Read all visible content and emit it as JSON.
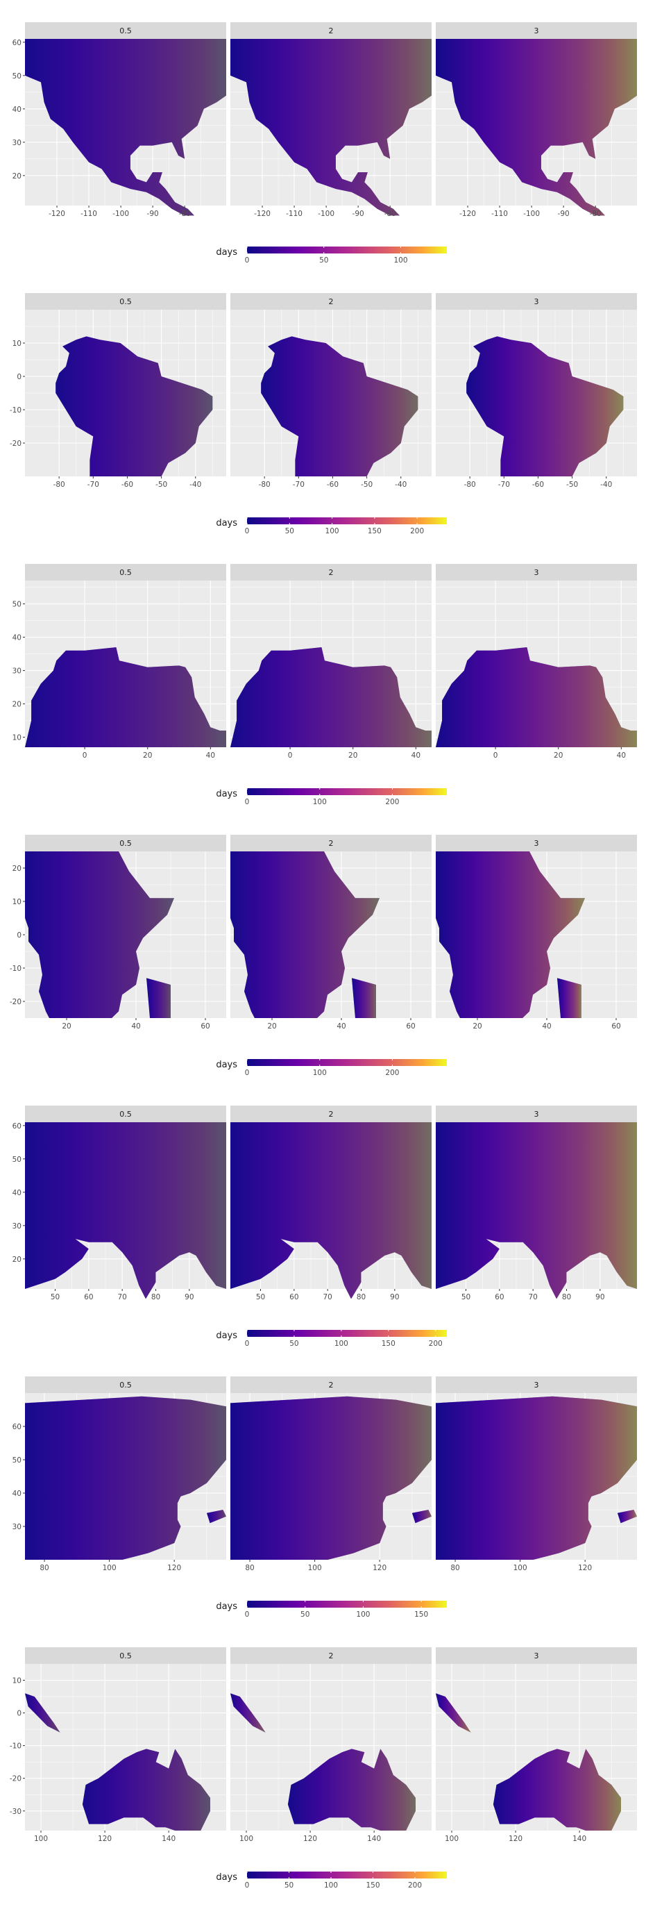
{
  "chart_data": [
    {
      "type": "heatmap",
      "facets": [
        "0.5",
        "2",
        "3"
      ],
      "x_ticks": [
        -120,
        -110,
        -100,
        -90,
        -80
      ],
      "y_ticks": [
        20,
        30,
        40,
        50,
        60
      ],
      "xlim": [
        -130,
        -67
      ],
      "ylim": [
        11,
        61
      ],
      "legend": {
        "title": "days",
        "ticks": [
          0,
          50,
          100
        ],
        "range": [
          0,
          130
        ]
      }
    },
    {
      "type": "heatmap",
      "facets": [
        "0.5",
        "2",
        "3"
      ],
      "x_ticks": [
        -80,
        -70,
        -60,
        -50,
        -40
      ],
      "y_ticks": [
        -20,
        -10,
        0,
        10
      ],
      "xlim": [
        -90,
        -31
      ],
      "ylim": [
        -30,
        20
      ],
      "legend": {
        "title": "days",
        "ticks": [
          0,
          50,
          100,
          150,
          200
        ],
        "range": [
          0,
          235
        ]
      }
    },
    {
      "type": "heatmap",
      "facets": [
        "0.5",
        "2",
        "3"
      ],
      "x_ticks": [
        0,
        20,
        40
      ],
      "y_ticks": [
        10,
        20,
        30,
        40,
        50
      ],
      "xlim": [
        -19,
        45
      ],
      "ylim": [
        7,
        57
      ],
      "legend": {
        "title": "days",
        "ticks": [
          0,
          100,
          200
        ],
        "range": [
          0,
          275
        ]
      }
    },
    {
      "type": "heatmap",
      "facets": [
        "0.5",
        "2",
        "3"
      ],
      "x_ticks": [
        20,
        40,
        60
      ],
      "y_ticks": [
        -20,
        -10,
        0,
        10,
        20
      ],
      "xlim": [
        8,
        66
      ],
      "ylim": [
        -25,
        25
      ],
      "legend": {
        "title": "days",
        "ticks": [
          0,
          100,
          200
        ],
        "range": [
          0,
          275
        ]
      }
    },
    {
      "type": "heatmap",
      "facets": [
        "0.5",
        "2",
        "3"
      ],
      "x_ticks": [
        50,
        60,
        70,
        80,
        90
      ],
      "y_ticks": [
        20,
        30,
        40,
        50,
        60
      ],
      "xlim": [
        41,
        101
      ],
      "ylim": [
        11,
        61
      ],
      "legend": {
        "title": "days",
        "ticks": [
          0,
          50,
          100,
          150,
          200
        ],
        "range": [
          0,
          212
        ]
      }
    },
    {
      "type": "heatmap",
      "facets": [
        "0.5",
        "2",
        "3"
      ],
      "x_ticks": [
        80,
        100,
        120
      ],
      "y_ticks": [
        30,
        40,
        50,
        60
      ],
      "xlim": [
        74,
        136
      ],
      "ylim": [
        20,
        70
      ],
      "legend": {
        "title": "days",
        "ticks": [
          0,
          50,
          100,
          150
        ],
        "range": [
          0,
          172
        ]
      }
    },
    {
      "type": "heatmap",
      "facets": [
        "0.5",
        "2",
        "3"
      ],
      "x_ticks": [
        100,
        120,
        140
      ],
      "y_ticks": [
        -30,
        -20,
        -10,
        0,
        10
      ],
      "xlim": [
        95,
        158
      ],
      "ylim": [
        -36,
        15
      ],
      "legend": {
        "title": "days",
        "ticks": [
          0,
          50,
          100,
          150,
          200
        ],
        "range": [
          0,
          238
        ]
      }
    }
  ]
}
